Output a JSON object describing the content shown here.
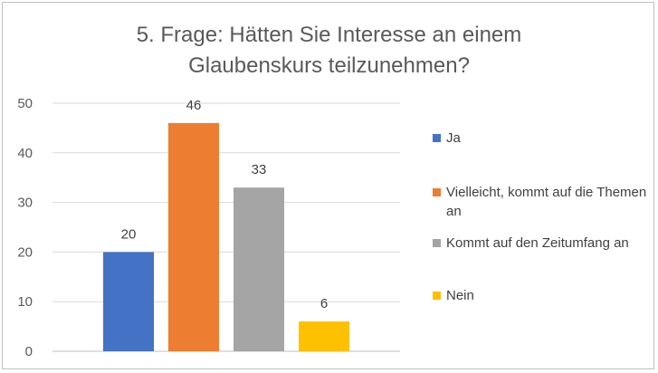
{
  "chart_data": {
    "type": "bar",
    "title_lines": [
      "5. Frage: Hätten Sie Interesse an einem",
      "Glaubenskurs teilzunehmen?"
    ],
    "categories": [
      "Ja",
      "Vielleicht, kommt auf die Themen an",
      "Kommt auf den Zeitumfang an",
      "Nein"
    ],
    "values": [
      20,
      46,
      33,
      6
    ],
    "data_labels": [
      "20",
      "46",
      "33",
      "6"
    ],
    "colors": [
      "#4472C4",
      "#ED7D31",
      "#A5A5A5",
      "#FFC000"
    ],
    "ylim": [
      0,
      50
    ],
    "yticks": [
      "0",
      "10",
      "20",
      "30",
      "40",
      "50"
    ],
    "grid": true,
    "legend_position": "right",
    "legend": [
      {
        "label": "Ja",
        "color": "#4472C4"
      },
      {
        "label": "Vielleicht, kommt auf die Themen an",
        "color": "#ED7D31"
      },
      {
        "label": "Kommt auf den Zeitumfang an",
        "color": "#A5A5A5"
      },
      {
        "label": "Nein",
        "color": "#FFC000"
      }
    ]
  }
}
